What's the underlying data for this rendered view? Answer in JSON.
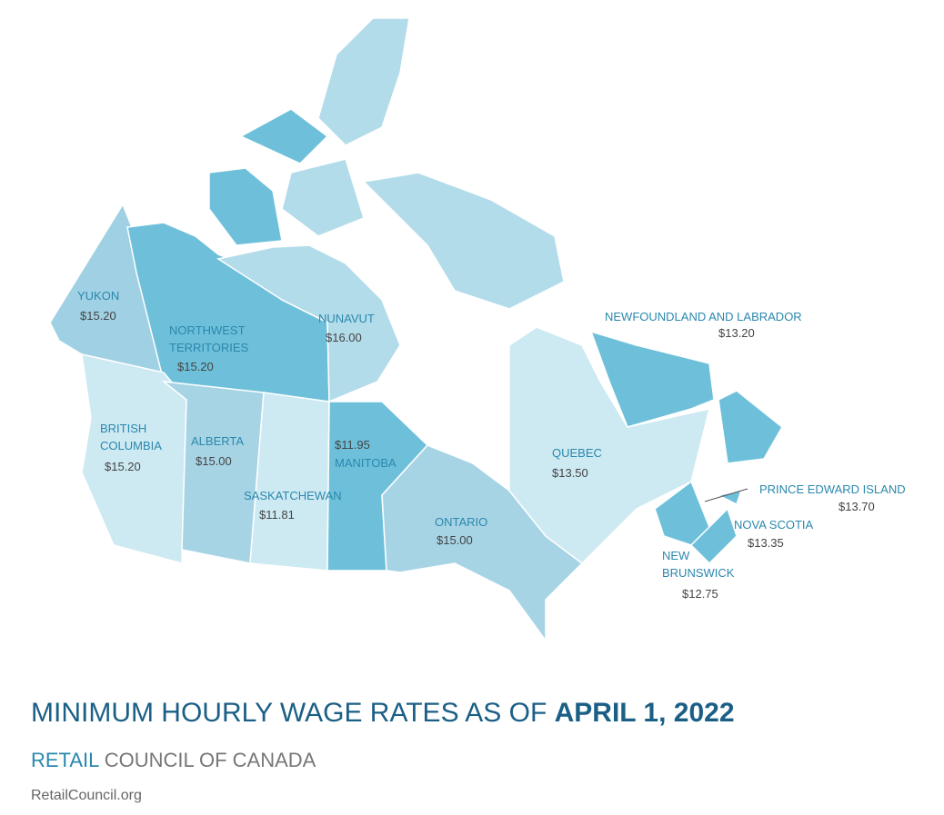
{
  "regions": [
    {
      "name": [
        "YUKON"
      ],
      "wage": "$15.20"
    },
    {
      "name": [
        "NORTHWEST",
        "TERRITORIES"
      ],
      "wage": "$15.20"
    },
    {
      "name": [
        "NUNAVUT"
      ],
      "wage": "$16.00"
    },
    {
      "name": [
        "BRITISH",
        "COLUMBIA"
      ],
      "wage": "$15.20"
    },
    {
      "name": [
        "ALBERTA"
      ],
      "wage": "$15.00"
    },
    {
      "name": [
        "SASKATCHEWAN"
      ],
      "wage": "$11.81"
    },
    {
      "name": [
        "MANITOBA"
      ],
      "wage": "$11.95"
    },
    {
      "name": [
        "ONTARIO"
      ],
      "wage": "$15.00"
    },
    {
      "name": [
        "QUEBEC"
      ],
      "wage": "$13.50"
    },
    {
      "name": [
        "NEWFOUNDLAND AND LABRADOR"
      ],
      "wage": "$13.20"
    },
    {
      "name": [
        "PRINCE EDWARD ISLAND"
      ],
      "wage": "$13.70"
    },
    {
      "name": [
        "NOVA SCOTIA"
      ],
      "wage": "$13.35"
    },
    {
      "name": [
        "NEW",
        "BRUNSWICK"
      ],
      "wage": "$12.75"
    }
  ],
  "title": {
    "text": "MINIMUM HOURLY WAGE RATES AS OF",
    "date": "APRIL 1, 2022"
  },
  "subtitle": {
    "highlight": "RETAIL",
    "text": "COUNCIL OF CANADA"
  },
  "url": "RetailCouncil.org"
}
